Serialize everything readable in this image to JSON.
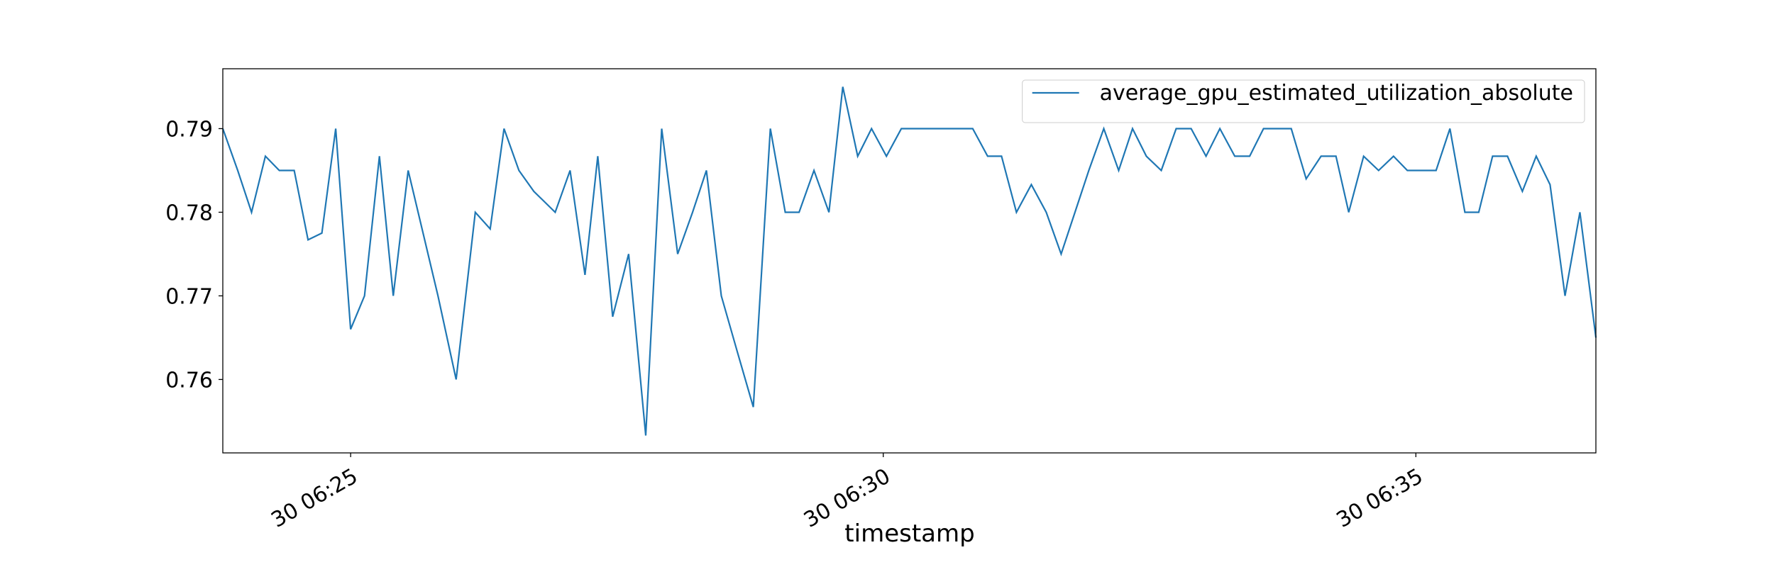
{
  "chart_data": {
    "type": "line",
    "x_label": "timestamp",
    "x": [
      23.8,
      23.94,
      24.07,
      24.2,
      24.33,
      24.47,
      24.6,
      24.73,
      24.86,
      25.0,
      25.13,
      25.27,
      25.4,
      25.54,
      25.68,
      25.82,
      25.99,
      26.17,
      26.31,
      26.44,
      26.58,
      26.72,
      26.92,
      27.06,
      27.2,
      27.32,
      27.46,
      27.61,
      27.77,
      27.92,
      28.07,
      28.21,
      28.34,
      28.48,
      28.63,
      28.78,
      28.94,
      29.08,
      29.21,
      29.35,
      29.49,
      29.62,
      29.76,
      29.89,
      30.03,
      30.17,
      30.31,
      30.45,
      30.58,
      30.71,
      30.84,
      30.98,
      31.11,
      31.25,
      31.39,
      31.53,
      31.67,
      31.8,
      31.93,
      32.07,
      32.21,
      32.34,
      32.47,
      32.61,
      32.75,
      32.89,
      33.03,
      33.16,
      33.3,
      33.44,
      33.57,
      33.7,
      33.83,
      33.97,
      34.11,
      34.25,
      34.37,
      34.51,
      34.65,
      34.79,
      34.92,
      35.05,
      35.19,
      35.32,
      35.46,
      35.59,
      35.72,
      35.86,
      36.0,
      36.13,
      36.26,
      36.4,
      36.54,
      36.69
    ],
    "series": [
      {
        "name": "average_gpu_estimated_utilization_absolute",
        "color": "#1f77b4",
        "values": [
          0.79,
          0.785,
          0.78,
          0.7867,
          0.785,
          0.785,
          0.7767,
          0.7775,
          0.79,
          0.766,
          0.77,
          0.7867,
          0.77,
          0.785,
          0.7775,
          0.77,
          0.76,
          0.78,
          0.778,
          0.79,
          0.785,
          0.7825,
          0.78,
          0.785,
          0.7725,
          0.7867,
          0.7675,
          0.775,
          0.7533,
          0.79,
          0.775,
          0.78,
          0.785,
          0.77,
          0.7633,
          0.7567,
          0.79,
          0.78,
          0.78,
          0.785,
          0.78,
          0.795,
          0.7867,
          0.79,
          0.7867,
          0.79,
          0.79,
          0.79,
          0.79,
          0.79,
          0.79,
          0.7867,
          0.7867,
          0.78,
          0.7833,
          0.78,
          0.775,
          0.78,
          0.785,
          0.79,
          0.785,
          0.79,
          0.7867,
          0.785,
          0.79,
          0.79,
          0.7867,
          0.79,
          0.7867,
          0.7867,
          0.79,
          0.79,
          0.79,
          0.784,
          0.7867,
          0.7867,
          0.78,
          0.7867,
          0.785,
          0.7867,
          0.785,
          0.785,
          0.785,
          0.79,
          0.78,
          0.78,
          0.7867,
          0.7867,
          0.7825,
          0.7867,
          0.7833,
          0.77,
          0.78,
          0.765
        ]
      }
    ],
    "xlim": [
      23.8,
      36.69
    ],
    "xticks": [
      {
        "value": 25,
        "label": "30 06:25"
      },
      {
        "value": 30,
        "label": "30 06:30"
      },
      {
        "value": 35,
        "label": "30 06:35"
      }
    ],
    "ylim": [
      0.75122,
      0.79716
    ],
    "yticks": [
      0.76,
      0.77,
      0.78,
      0.79
    ],
    "grid": false,
    "legend": "upper right"
  }
}
